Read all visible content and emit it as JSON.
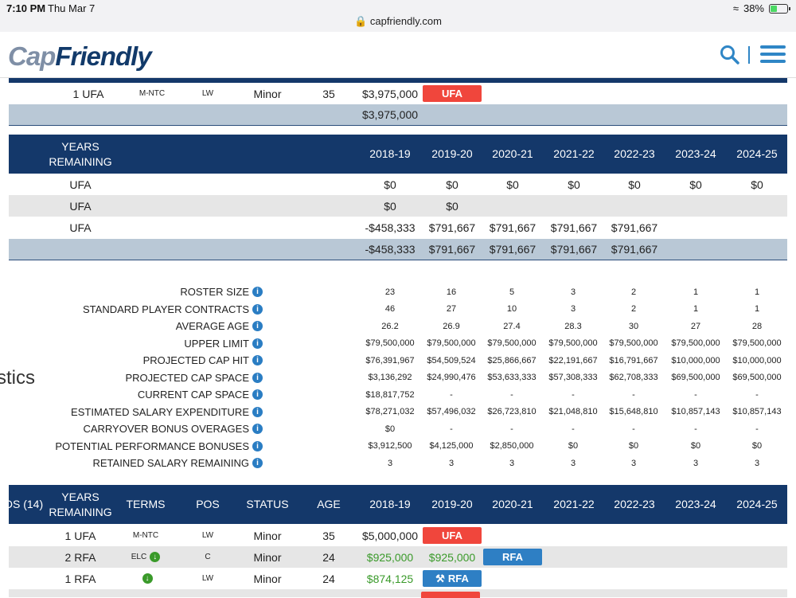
{
  "status_bar": {
    "time": "7:10 PM",
    "date": "Thu Mar 7",
    "url": "capfriendly.com",
    "battery": "38%"
  },
  "header": {
    "logo_cap": "Cap",
    "logo_friendly": "Friendly"
  },
  "top_player_row": {
    "years": "1 UFA",
    "terms": "M-NTC",
    "pos": "LW",
    "status": "Minor",
    "age": "35",
    "cap_hit": "$3,975,000",
    "badge": "UFA"
  },
  "top_total": "$3,975,000",
  "buried_table": {
    "header_years": "YEARS REMAINING",
    "seasons": [
      "2018-19",
      "2019-20",
      "2020-21",
      "2021-22",
      "2022-23",
      "2023-24",
      "2024-25"
    ],
    "rows": [
      {
        "label": "UFA",
        "values": [
          "$0",
          "$0",
          "$0",
          "$0",
          "$0",
          "$0",
          "$0"
        ]
      },
      {
        "label": "UFA",
        "values": [
          "$0",
          "$0",
          "",
          "",
          "",
          "",
          ""
        ]
      },
      {
        "label": "UFA",
        "values": [
          "-$458,333",
          "$791,667",
          "$791,667",
          "$791,667",
          "$791,667",
          "",
          ""
        ]
      }
    ],
    "total": [
      "-$458,333",
      "$791,667",
      "$791,667",
      "$791,667",
      "$791,667",
      "",
      ""
    ]
  },
  "stats": {
    "side_label": "stics",
    "info_icon": "i",
    "rows": [
      {
        "label": "ROSTER SIZE",
        "values": [
          "23",
          "16",
          "5",
          "3",
          "2",
          "1",
          "1"
        ]
      },
      {
        "label": "STANDARD PLAYER CONTRACTS",
        "values": [
          "46",
          "27",
          "10",
          "3",
          "2",
          "1",
          "1"
        ]
      },
      {
        "label": "AVERAGE AGE",
        "values": [
          "26.2",
          "26.9",
          "27.4",
          "28.3",
          "30",
          "27",
          "28"
        ]
      },
      {
        "label": "UPPER LIMIT",
        "values": [
          "$79,500,000",
          "$79,500,000",
          "$79,500,000",
          "$79,500,000",
          "$79,500,000",
          "$79,500,000",
          "$79,500,000"
        ]
      },
      {
        "label": "PROJECTED CAP HIT",
        "values": [
          "$76,391,967",
          "$54,509,524",
          "$25,866,667",
          "$22,191,667",
          "$16,791,667",
          "$10,000,000",
          "$10,000,000"
        ]
      },
      {
        "label": "PROJECTED CAP SPACE",
        "values": [
          "$3,136,292",
          "$24,990,476",
          "$53,633,333",
          "$57,308,333",
          "$62,708,333",
          "$69,500,000",
          "$69,500,000"
        ]
      },
      {
        "label": "CURRENT CAP SPACE",
        "values": [
          "$18,817,752",
          "-",
          "-",
          "-",
          "-",
          "-",
          "-"
        ]
      },
      {
        "label": "ESTIMATED SALARY EXPENDITURE",
        "values": [
          "$78,271,032",
          "$57,496,032",
          "$26,723,810",
          "$21,048,810",
          "$15,648,810",
          "$10,857,143",
          "$10,857,143"
        ]
      },
      {
        "label": "CARRYOVER BONUS OVERAGES",
        "values": [
          "$0",
          "-",
          "-",
          "-",
          "-",
          "-",
          "-"
        ]
      },
      {
        "label": "POTENTIAL PERFORMANCE BONUSES",
        "values": [
          "$3,912,500",
          "$4,125,000",
          "$2,850,000",
          "$0",
          "$0",
          "$0",
          "$0"
        ]
      },
      {
        "label": "RETAINED SALARY REMAINING",
        "values": [
          "3",
          "3",
          "3",
          "3",
          "3",
          "3",
          "3"
        ]
      }
    ]
  },
  "bottom_table": {
    "headers": {
      "group": "DS (14)",
      "years": "YEARS REMAINING",
      "terms": "TERMS",
      "pos": "POS",
      "status": "STATUS",
      "age": "AGE"
    },
    "seasons": [
      "2018-19",
      "2019-20",
      "2020-21",
      "2021-22",
      "2022-23",
      "2023-24",
      "2024-25"
    ],
    "rows": [
      {
        "years": "1 UFA",
        "terms": "M-NTC",
        "pos": "LW",
        "status": "Minor",
        "age": "35",
        "s1": "$5,000,000",
        "badge": "UFA"
      },
      {
        "years": "2 RFA",
        "terms": "ELC",
        "pos": "C",
        "status": "Minor",
        "age": "24",
        "s1": "$925,000",
        "s2": "$925,000",
        "badge": "RFA"
      },
      {
        "years": "1 RFA",
        "terms": "",
        "pos": "LW",
        "status": "Minor",
        "age": "24",
        "s1": "$874,125",
        "badge": "RFA"
      }
    ]
  },
  "colors": {
    "navy": "#14386a",
    "ufa_red": "#f0463c",
    "rfa_blue": "#2e7fc4",
    "elc_green": "#3a9a2a"
  }
}
